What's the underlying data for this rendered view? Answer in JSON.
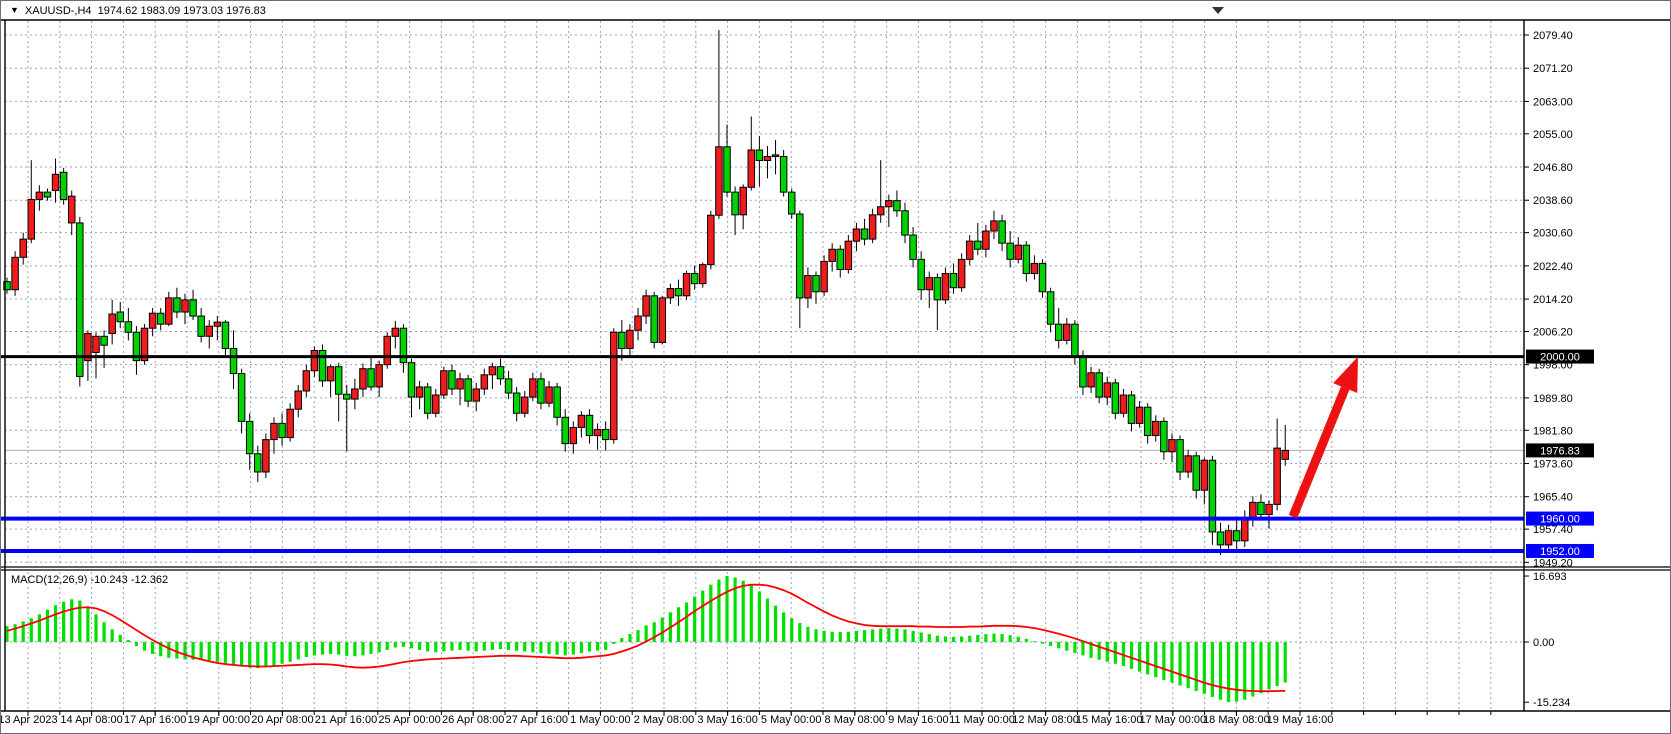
{
  "title": {
    "icon": "▼",
    "text": "XAUUSD-,H4  1974.62 1983.09 1973.03 1976.83"
  },
  "macd_panel": {
    "label": "MACD(12,26,9) -10.243 -12.362"
  },
  "colors": {
    "bull": "#f01b1b",
    "bear": "#00d300",
    "candle_border": "#000000",
    "wick": "#000000",
    "grid": "#9aa2b2",
    "axis_text": "#000000",
    "background": "#ffffff",
    "hline_black": "#000000",
    "hline_blue": "#0000ff",
    "current_line": "#b0b0b0",
    "macd_hist": "#00e000",
    "macd_signal": "#ff0000",
    "arrow": "#ee1111",
    "badge_text": "#ffffff",
    "pane_border": "#000000"
  },
  "chart_data": {
    "type": "candlestick",
    "symbol": "XAUUSD-",
    "timeframe": "H4",
    "title": "XAUUSD-,H4",
    "last_ohlc": {
      "open": 1974.62,
      "high": 1983.09,
      "low": 1973.03,
      "close": 1976.83
    },
    "price_axis_ticks": [
      2079.4,
      2071.2,
      2063.0,
      2055.0,
      2046.8,
      2038.6,
      2030.6,
      2022.4,
      2014.2,
      2006.2,
      1998.0,
      1989.8,
      1981.8,
      1973.6,
      1965.4,
      1957.4,
      1949.2
    ],
    "time_labels": [
      "13 Apr 2023",
      "14 Apr 08:00",
      "17 Apr 16:00",
      "19 Apr 00:00",
      "20 Apr 08:00",
      "21 Apr 16:00",
      "25 Apr 00:00",
      "26 Apr 08:00",
      "27 Apr 16:00",
      "1 May 00:00",
      "2 May 08:00",
      "3 May 16:00",
      "5 May 00:00",
      "8 May 08:00",
      "9 May 16:00",
      "11 May 00:00",
      "12 May 08:00",
      "15 May 16:00",
      "17 May 00:00",
      "18 May 08:00",
      "19 May 16:00"
    ],
    "hlines": [
      {
        "price": 2000.0,
        "label": "2000.00",
        "color": "#000000",
        "width": 3
      },
      {
        "price": 1960.0,
        "label": "1960.00",
        "color": "#0000ff",
        "width": 4
      },
      {
        "price": 1952.0,
        "label": "1952.00",
        "color": "#0000ff",
        "width": 4
      }
    ],
    "current_price": {
      "value": 1976.83,
      "label": "1976.83"
    },
    "arrow": {
      "from_price": 1960.0,
      "to_price": 2000.0,
      "note": "red up arrow from 1960 support to 2000 resistance"
    },
    "candles": [
      [
        2018.5,
        2019.5,
        2015.5,
        2016.5
      ],
      [
        2016.5,
        2026,
        2015,
        2024.5
      ],
      [
        2024.5,
        2030.6,
        2022.7,
        2029
      ],
      [
        2029,
        2048.5,
        2028,
        2038.8
      ],
      [
        2038.8,
        2042.3,
        2036,
        2040.6
      ],
      [
        2040.6,
        2041.5,
        2038.5,
        2039.4
      ],
      [
        2041,
        2048.9,
        2038,
        2045
      ],
      [
        2045.5,
        2046.6,
        2037.5,
        2038.8
      ],
      [
        2033,
        2041,
        2030,
        2039.6
      ],
      [
        2033,
        2034.5,
        1992.6,
        1995.1
      ],
      [
        1999,
        2006.5,
        1994,
        2005.7
      ],
      [
        2001,
        2006,
        1994.6,
        2005
      ],
      [
        2005,
        2006.5,
        1997.2,
        2002.8
      ],
      [
        2005.7,
        2014,
        2003,
        2010.5
      ],
      [
        2011,
        2013.5,
        2007,
        2008.6
      ],
      [
        2008.6,
        2012,
        2004,
        2006
      ],
      [
        2006,
        2007.5,
        1995.5,
        1999
      ],
      [
        1999,
        2008,
        1998,
        2007
      ],
      [
        2007,
        2012,
        2005,
        2010.7
      ],
      [
        2010.7,
        2012,
        2006.5,
        2008
      ],
      [
        2008,
        2016,
        2007.5,
        2014.5
      ],
      [
        2014.5,
        2017,
        2009.5,
        2011
      ],
      [
        2011,
        2015.5,
        2008,
        2014
      ],
      [
        2014,
        2016.5,
        2009,
        2010
      ],
      [
        2010,
        2012,
        2003.5,
        2005
      ],
      [
        2005,
        2009,
        2002,
        2007.5
      ],
      [
        2007.5,
        2010,
        2004,
        2008.5
      ],
      [
        2008.5,
        2009,
        2000,
        2002
      ],
      [
        2002,
        2006.5,
        1992,
        1995.8
      ],
      [
        1995.8,
        1997,
        1981,
        1984
      ],
      [
        1984,
        1986,
        1972,
        1976
      ],
      [
        1976,
        1978,
        1969,
        1971.5
      ],
      [
        1971.5,
        1981,
        1970,
        1979.5
      ],
      [
        1979.5,
        1985,
        1976,
        1983.5
      ],
      [
        1983.5,
        1986,
        1978,
        1980
      ],
      [
        1980,
        1988.5,
        1979,
        1987
      ],
      [
        1987,
        1993,
        1985,
        1991.5
      ],
      [
        1991.5,
        1998,
        1990,
        1996.5
      ],
      [
        1996.5,
        2002.5,
        1995,
        2001.5
      ],
      [
        2001.5,
        2003,
        1992.5,
        1994
      ],
      [
        1994,
        1998,
        1990,
        1997.5
      ],
      [
        1997.5,
        1998.5,
        1984,
        1990.7
      ],
      [
        1990.7,
        1993,
        1976.6,
        1989.5
      ],
      [
        1989.5,
        1994.5,
        1987,
        1992
      ],
      [
        1992,
        1998.3,
        1990,
        1997
      ],
      [
        1997,
        2000,
        1991.6,
        1992.5
      ],
      [
        1992.5,
        1999,
        1990,
        1998
      ],
      [
        1998,
        2006,
        1997,
        2005
      ],
      [
        2005,
        2008.8,
        2002,
        2007
      ],
      [
        2007,
        2008,
        1996,
        1998.5
      ],
      [
        1998.5,
        1999.5,
        1985,
        1990
      ],
      [
        1990,
        1994,
        1987,
        1992.5
      ],
      [
        1992.5,
        1993.5,
        1984.5,
        1986
      ],
      [
        1986,
        1992,
        1985,
        1990.5
      ],
      [
        1990.5,
        1997.5,
        1989.5,
        1996.5
      ],
      [
        1996.5,
        1998,
        1990.5,
        1992
      ],
      [
        1992,
        1996,
        1988,
        1994.5
      ],
      [
        1994.5,
        1995.5,
        1987.5,
        1989
      ],
      [
        1989,
        1993.5,
        1986.5,
        1992
      ],
      [
        1992,
        1997,
        1990.5,
        1995.5
      ],
      [
        1995.5,
        1998.5,
        1992,
        1997.5
      ],
      [
        1997.5,
        1999.5,
        1993,
        1994.5
      ],
      [
        1994.5,
        1996.5,
        1989.5,
        1991
      ],
      [
        1991,
        1992.5,
        1984,
        1986
      ],
      [
        1986,
        1991.5,
        1985,
        1990
      ],
      [
        1990,
        1996,
        1989,
        1994.5
      ],
      [
        1994.5,
        1996,
        1987,
        1988.5
      ],
      [
        1988.5,
        1994,
        1987.5,
        1992.5
      ],
      [
        1992.5,
        1993.5,
        1983,
        1985
      ],
      [
        1985,
        1987,
        1976.5,
        1978.5
      ],
      [
        1978.5,
        1984,
        1976,
        1982.5
      ],
      [
        1982.5,
        1986.5,
        1980,
        1985.5
      ],
      [
        1985.5,
        1987,
        1978.5,
        1980.5
      ],
      [
        1980.5,
        1983.5,
        1977,
        1982
      ],
      [
        1982,
        1984,
        1976.8,
        1979.5
      ],
      [
        1979.5,
        2007,
        1978.5,
        2006
      ],
      [
        2006,
        2009,
        1999,
        2002
      ],
      [
        2002,
        2008,
        2000,
        2006.5
      ],
      [
        2006.5,
        2012,
        2004,
        2010
      ],
      [
        2010,
        2016.5,
        2008,
        2015
      ],
      [
        2015,
        2016,
        2002,
        2003.5
      ],
      [
        2003.5,
        2015,
        2003,
        2014.5
      ],
      [
        2014.5,
        2018,
        2013,
        2016.8
      ],
      [
        2016.8,
        2019,
        2012.5,
        2015
      ],
      [
        2015,
        2021.2,
        2014,
        2020.5
      ],
      [
        2020.5,
        2022.5,
        2016.5,
        2018
      ],
      [
        2018,
        2023.2,
        2017,
        2022.7
      ],
      [
        2022.7,
        2036,
        2021.5,
        2034.9
      ],
      [
        2034.9,
        2080.6,
        2034,
        2051.8
      ],
      [
        2051.8,
        2057.3,
        2039.5,
        2040.6
      ],
      [
        2040.6,
        2042,
        2030,
        2035
      ],
      [
        2035,
        2042.5,
        2031.4,
        2041.8
      ],
      [
        2041.8,
        2059.3,
        2041,
        2051
      ],
      [
        2051,
        2054.5,
        2042,
        2048.4
      ],
      [
        2048.4,
        2052,
        2044,
        2049.4
      ],
      [
        2049.4,
        2053.5,
        2045,
        2049.8
      ],
      [
        2049.4,
        2051,
        2039.5,
        2040.6
      ],
      [
        2040.6,
        2041.5,
        2034,
        2035.2
      ],
      [
        2035.2,
        2036,
        2007,
        2014.5
      ],
      [
        2014.5,
        2022,
        2012,
        2020
      ],
      [
        2020,
        2021,
        2013,
        2016
      ],
      [
        2016,
        2025,
        2015,
        2023.5
      ],
      [
        2023.5,
        2028,
        2021,
        2026.5
      ],
      [
        2026.5,
        2027.5,
        2019.5,
        2021.5
      ],
      [
        2021.5,
        2030,
        2020.5,
        2028.5
      ],
      [
        2028.5,
        2033,
        2026,
        2031.5
      ],
      [
        2031.5,
        2034,
        2027.5,
        2029
      ],
      [
        2029,
        2036.5,
        2028,
        2035
      ],
      [
        2035,
        2048.5,
        2033,
        2037
      ],
      [
        2037,
        2040,
        2032,
        2038.5
      ],
      [
        2038.5,
        2041,
        2034.5,
        2036
      ],
      [
        2036,
        2038,
        2028,
        2030
      ],
      [
        2030,
        2032,
        2022,
        2024
      ],
      [
        2024,
        2026,
        2014,
        2016.5
      ],
      [
        2016.5,
        2021,
        2012,
        2019.5
      ],
      [
        2019.5,
        2020.5,
        2006.5,
        2014
      ],
      [
        2014,
        2022,
        2013,
        2020.5
      ],
      [
        2020.5,
        2023,
        2015.5,
        2017
      ],
      [
        2017,
        2025.5,
        2016,
        2024
      ],
      [
        2024,
        2030,
        2022.5,
        2028.5
      ],
      [
        2028.5,
        2033,
        2025,
        2026.5
      ],
      [
        2026.5,
        2032.5,
        2024.5,
        2031
      ],
      [
        2031,
        2036,
        2029,
        2033.5
      ],
      [
        2033.5,
        2035,
        2026,
        2028
      ],
      [
        2028,
        2031,
        2022,
        2024
      ],
      [
        2024,
        2029.5,
        2023,
        2027.5
      ],
      [
        2027.5,
        2028.5,
        2018.5,
        2020.5
      ],
      [
        2020.5,
        2025,
        2019,
        2023
      ],
      [
        2023,
        2024,
        2014.5,
        2016
      ],
      [
        2016,
        2017,
        2006,
        2008
      ],
      [
        2008,
        2012,
        2002,
        2004
      ],
      [
        2004,
        2009.5,
        2003,
        2008
      ],
      [
        2008,
        2009,
        1998,
        2000
      ],
      [
        2000,
        2001.5,
        1990.5,
        1992.5
      ],
      [
        1992.5,
        1997.5,
        1991,
        1996
      ],
      [
        1996,
        1997,
        1988.5,
        1990
      ],
      [
        1990,
        1995,
        1988,
        1993.5
      ],
      [
        1993.5,
        1994.5,
        1984.5,
        1986
      ],
      [
        1986,
        1992,
        1985,
        1990.5
      ],
      [
        1990.5,
        1991.5,
        1981.5,
        1983.5
      ],
      [
        1983.5,
        1989,
        1982.5,
        1987.5
      ],
      [
        1987.5,
        1988.5,
        1978.5,
        1980.5
      ],
      [
        1980.5,
        1985.5,
        1979,
        1984
      ],
      [
        1984,
        1985,
        1974.5,
        1976.5
      ],
      [
        1976.5,
        1981,
        1974,
        1979.5
      ],
      [
        1979.5,
        1980.5,
        1969.5,
        1971.5
      ],
      [
        1971.5,
        1977,
        1970,
        1975.5
      ],
      [
        1975.5,
        1976.5,
        1965,
        1967
      ],
      [
        1967,
        1975,
        1963.5,
        1974.4
      ],
      [
        1974.4,
        1975.5,
        1953.5,
        1956.7
      ],
      [
        1956.7,
        1959,
        1951,
        1953.5
      ],
      [
        1953.5,
        1958.5,
        1951.5,
        1957
      ],
      [
        1957,
        1959.5,
        1952.5,
        1954.5
      ],
      [
        1954.5,
        1962,
        1953,
        1960
      ],
      [
        1960,
        1965.5,
        1958,
        1964
      ],
      [
        1964,
        1966,
        1959.5,
        1961
      ],
      [
        1961,
        1964.5,
        1957.5,
        1963.5
      ],
      [
        1963.5,
        1984.7,
        1962,
        1977.4
      ],
      [
        1974.62,
        1983.09,
        1973.03,
        1976.83
      ]
    ],
    "macd": {
      "params": "12,26,9",
      "main_last": -10.243,
      "signal_last": -12.362,
      "axis_max": 16.693,
      "axis_zero": "0.00",
      "axis_min": -15.234,
      "hist": [
        4.0,
        4.5,
        5.2,
        6.0,
        7.0,
        8.2,
        9.3,
        10.2,
        10.8,
        10.5,
        9.0,
        7.0,
        5.0,
        3.2,
        1.8,
        0.5,
        -1.0,
        -2.2,
        -3.0,
        -3.6,
        -4.0,
        -4.2,
        -4.4,
        -4.5,
        -4.6,
        -4.8,
        -5.0,
        -5.4,
        -5.8,
        -6.2,
        -6.5,
        -6.6,
        -6.4,
        -6.0,
        -5.5,
        -5.0,
        -4.4,
        -3.8,
        -3.4,
        -3.2,
        -3.0,
        -3.2,
        -3.5,
        -3.6,
        -3.4,
        -3.0,
        -2.6,
        -2.0,
        -1.4,
        -1.2,
        -1.6,
        -2.0,
        -2.4,
        -2.6,
        -2.4,
        -2.2,
        -2.0,
        -2.2,
        -2.4,
        -2.2,
        -2.0,
        -1.8,
        -2.0,
        -2.2,
        -2.4,
        -2.6,
        -2.8,
        -3.0,
        -3.2,
        -3.4,
        -3.2,
        -2.8,
        -2.4,
        -2.2,
        -2.0,
        -0.5,
        1.0,
        2.0,
        3.0,
        4.2,
        5.0,
        6.2,
        7.5,
        8.8,
        10.0,
        11.5,
        13.0,
        14.5,
        15.8,
        16.7,
        16.3,
        15.5,
        14.3,
        12.8,
        11.0,
        9.2,
        7.5,
        6.0,
        4.8,
        3.8,
        3.2,
        2.8,
        2.6,
        2.5,
        2.6,
        2.8,
        3.0,
        3.2,
        3.4,
        3.5,
        3.4,
        3.2,
        2.8,
        2.4,
        2.0,
        1.6,
        1.4,
        1.3,
        1.4,
        1.6,
        1.8,
        2.0,
        2.1,
        2.0,
        1.7,
        1.3,
        0.8,
        0.2,
        -0.4,
        -1.0,
        -1.6,
        -2.2,
        -2.8,
        -3.4,
        -4.0,
        -4.5,
        -5.0,
        -5.5,
        -6.1,
        -6.8,
        -7.5,
        -8.2,
        -8.9,
        -9.6,
        -10.3,
        -11.0,
        -11.7,
        -12.4,
        -13.1,
        -13.9,
        -14.6,
        -15.2,
        -15.1,
        -14.6,
        -13.8,
        -12.9,
        -12.0,
        -11.1,
        -10.243
      ],
      "signal": [
        2.8,
        3.4,
        4.0,
        4.7,
        5.4,
        6.2,
        7.0,
        7.7,
        8.3,
        8.7,
        8.8,
        8.5,
        7.8,
        6.8,
        5.6,
        4.3,
        3.0,
        1.7,
        0.5,
        -0.6,
        -1.6,
        -2.5,
        -3.2,
        -3.9,
        -4.4,
        -4.9,
        -5.3,
        -5.6,
        -5.8,
        -6.0,
        -6.1,
        -6.2,
        -6.2,
        -6.1,
        -6.0,
        -5.9,
        -5.8,
        -5.7,
        -5.6,
        -5.6,
        -5.7,
        -5.9,
        -6.2,
        -6.4,
        -6.5,
        -6.4,
        -6.2,
        -5.9,
        -5.5,
        -5.1,
        -4.8,
        -4.6,
        -4.4,
        -4.3,
        -4.2,
        -4.1,
        -4.0,
        -3.9,
        -3.8,
        -3.7,
        -3.6,
        -3.5,
        -3.5,
        -3.5,
        -3.6,
        -3.7,
        -3.8,
        -3.9,
        -4.0,
        -4.1,
        -4.1,
        -4.0,
        -3.8,
        -3.6,
        -3.4,
        -3.0,
        -2.4,
        -1.7,
        -0.9,
        0.1,
        1.2,
        2.4,
        3.7,
        5.0,
        6.4,
        7.8,
        9.1,
        10.4,
        11.6,
        12.7,
        13.6,
        14.2,
        14.5,
        14.5,
        14.3,
        13.8,
        13.1,
        12.2,
        11.1,
        9.9,
        8.8,
        7.7,
        6.7,
        5.9,
        5.2,
        4.7,
        4.3,
        4.1,
        4.0,
        4.0,
        4.0,
        4.0,
        4.0,
        3.9,
        3.9,
        3.8,
        3.8,
        3.8,
        3.8,
        3.9,
        3.9,
        4.0,
        4.1,
        4.1,
        4.1,
        4.0,
        3.8,
        3.5,
        3.1,
        2.6,
        2.1,
        1.5,
        0.9,
        0.2,
        -0.5,
        -1.2,
        -1.9,
        -2.6,
        -3.3,
        -4.0,
        -4.7,
        -5.4,
        -6.1,
        -6.8,
        -7.5,
        -8.2,
        -8.9,
        -9.6,
        -10.3,
        -10.9,
        -11.4,
        -11.8,
        -12.1,
        -12.3,
        -12.4,
        -12.45,
        -12.45,
        -12.4,
        -12.362
      ]
    }
  }
}
